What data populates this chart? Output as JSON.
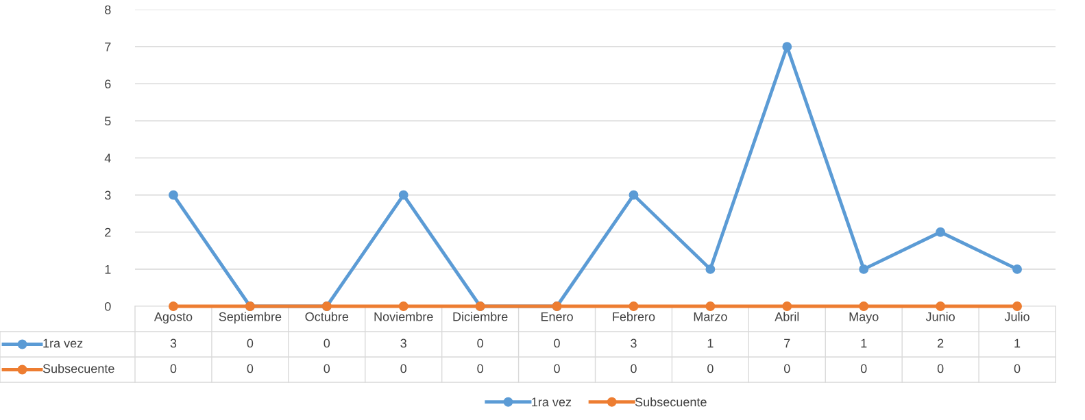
{
  "chart_data": {
    "type": "line",
    "categories": [
      "Agosto",
      "Septiembre",
      "Octubre",
      "Noviembre",
      "Diciembre",
      "Enero",
      "Febrero",
      "Marzo",
      "Abril",
      "Mayo",
      "Junio",
      "Julio"
    ],
    "series": [
      {
        "name": "1ra vez",
        "color": "#5b9bd5",
        "values": [
          3,
          0,
          0,
          3,
          0,
          0,
          3,
          1,
          7,
          1,
          2,
          1
        ]
      },
      {
        "name": "Subsecuente",
        "color": "#ed7d31",
        "values": [
          0,
          0,
          0,
          0,
          0,
          0,
          0,
          0,
          0,
          0,
          0,
          0
        ]
      }
    ],
    "ylim": [
      0,
      8
    ],
    "yticks": [
      0,
      1,
      2,
      3,
      4,
      5,
      6,
      7,
      8
    ],
    "grid": "y",
    "legend": "bottom",
    "marker": "circle",
    "line_style": "solid",
    "data_labels": true
  }
}
